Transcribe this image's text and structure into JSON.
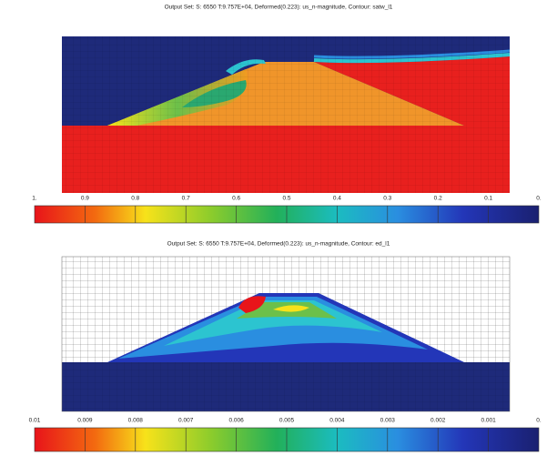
{
  "panels": [
    {
      "title": "Output Set: S:   6550 T:9.757E+04, Deformed(0.223): us_n-magnitude, Contour: satw_l1",
      "colorbar_labels": [
        "1.",
        "0.9",
        "0.8",
        "0.7",
        "0.6",
        "0.5",
        "0.4",
        "0.3",
        "0.2",
        "0.1",
        "0."
      ]
    },
    {
      "title": "Output Set: S:   6550 T:9.757E+04, Deformed(0.223): us_n-magnitude, Contour: ed_l1",
      "colorbar_labels": [
        "0.01",
        "0.009",
        "0.008",
        "0.007",
        "0.006",
        "0.005",
        "0.004",
        "0.003",
        "0.002",
        "0.001",
        "0."
      ]
    }
  ]
}
